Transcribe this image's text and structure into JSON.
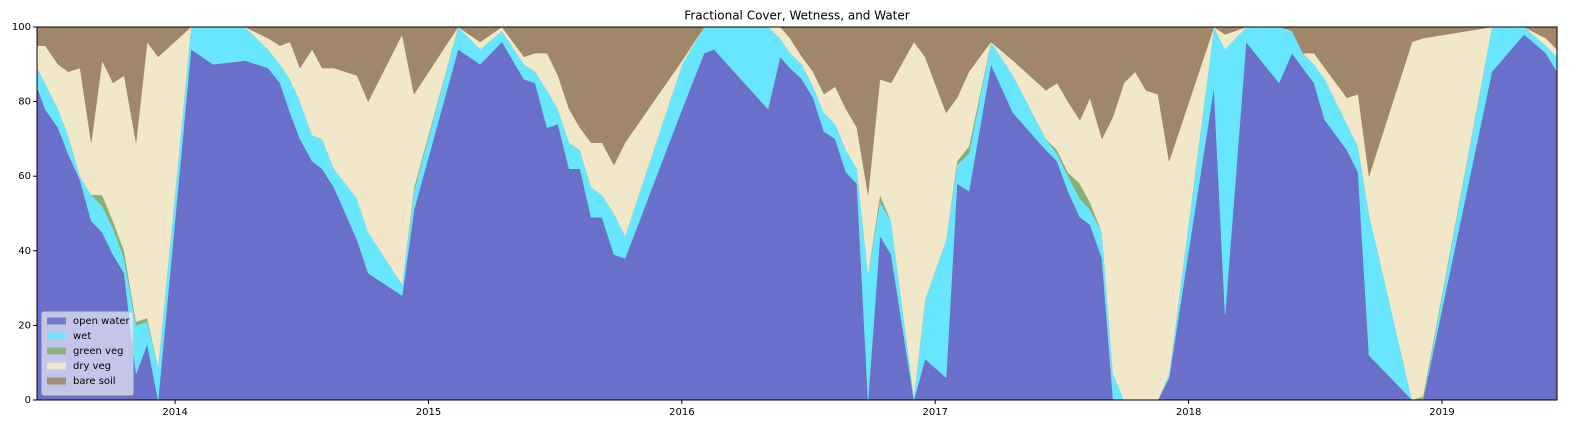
{
  "chart_data": {
    "type": "stacked_area",
    "title": "Fractional Cover, Wetness, and Water",
    "x": [
      2013.455,
      2013.487,
      2013.538,
      2013.578,
      2013.625,
      2013.669,
      2013.712,
      2013.755,
      2013.799,
      2013.846,
      2013.89,
      2013.933,
      2014.063,
      2014.15,
      2014.276,
      2014.367,
      2014.414,
      2014.454,
      2014.493,
      2014.541,
      2014.58,
      2014.627,
      2014.718,
      2014.762,
      2014.896,
      2014.943,
      2015.117,
      2015.204,
      2015.29,
      2015.377,
      2015.421,
      2015.468,
      2015.511,
      2015.555,
      2015.598,
      2015.642,
      2015.685,
      2015.732,
      2015.776,
      2016.001,
      2016.088,
      2016.127,
      2016.34,
      2016.388,
      2016.427,
      2016.474,
      2016.518,
      2016.561,
      2016.605,
      2016.648,
      2016.691,
      2016.735,
      2016.782,
      2016.826,
      2016.916,
      2016.96,
      2017.043,
      2017.086,
      2017.133,
      2017.22,
      2017.307,
      2017.437,
      2017.481,
      2017.524,
      2017.571,
      2017.611,
      2017.658,
      2017.702,
      2017.745,
      2017.789,
      2017.832,
      2017.879,
      2017.923,
      2018.1,
      2018.144,
      2018.227,
      2018.357,
      2018.408,
      2018.451,
      2018.495,
      2018.538,
      2018.625,
      2018.669,
      2018.712,
      2018.882,
      2018.925,
      2019.197,
      2019.324,
      2019.41,
      2019.454
    ],
    "series": [
      {
        "name": "open water",
        "color": "#6a70c9",
        "values": [
          84,
          78,
          73,
          66,
          59,
          48,
          45,
          39,
          34,
          7,
          15,
          0,
          94,
          90,
          91,
          89,
          85,
          77,
          70,
          64,
          62,
          57,
          43,
          34,
          28,
          51,
          94,
          90,
          96,
          86,
          85,
          73,
          74,
          62,
          62,
          49,
          49,
          39,
          38,
          78,
          93,
          94,
          78,
          92,
          89,
          86,
          81,
          72,
          70,
          61,
          58,
          0,
          44,
          39,
          0,
          11,
          6,
          58,
          56,
          90,
          77,
          67,
          64,
          56,
          49,
          47,
          38,
          0,
          0,
          0,
          0,
          0,
          6,
          84,
          23,
          96,
          85,
          93,
          89,
          85,
          75,
          67,
          61,
          12,
          0,
          0,
          88,
          98,
          93,
          88
        ]
      },
      {
        "name": "wet",
        "color": "#68e6fd",
        "values": [
          5,
          7,
          5,
          5,
          1,
          7,
          7,
          7,
          4,
          13,
          6,
          9,
          6,
          10,
          9,
          5,
          5,
          9,
          10,
          7,
          8,
          5,
          11,
          11,
          3,
          5,
          6,
          4,
          3,
          4,
          3,
          10,
          4,
          7,
          5,
          8,
          6,
          11,
          6,
          12,
          7,
          6,
          22,
          5,
          4,
          4,
          3,
          5,
          4,
          6,
          4,
          34,
          9,
          9,
          1,
          16,
          37,
          5,
          10,
          6,
          10,
          3,
          2,
          4,
          5,
          4,
          7,
          7,
          0,
          0,
          0,
          0,
          1,
          16,
          71,
          4,
          15,
          6,
          4,
          5,
          11,
          7,
          7,
          38,
          0,
          0,
          12,
          2,
          2,
          4
        ]
      },
      {
        "name": "green veg",
        "color": "#8aae76",
        "values": [
          0,
          0,
          0,
          0,
          0,
          0,
          3,
          2,
          2,
          1,
          1,
          0,
          0,
          0,
          0,
          0,
          0,
          0,
          0,
          0,
          0,
          0,
          0,
          0,
          0,
          1,
          0,
          0,
          0,
          0,
          0,
          0,
          0,
          0,
          0,
          0,
          0,
          0,
          0,
          0,
          0,
          0,
          0,
          0,
          0,
          0,
          0,
          0,
          0,
          0,
          0,
          0,
          2,
          0,
          0,
          0,
          0,
          1,
          2,
          0,
          0,
          0,
          1,
          1,
          4,
          2,
          0,
          0,
          0,
          0,
          0,
          0,
          0,
          0,
          0,
          0,
          0,
          0,
          0,
          0,
          0,
          0,
          0,
          0,
          0,
          1,
          0,
          0,
          0,
          0
        ]
      },
      {
        "name": "dry veg",
        "color": "#f1e7c9",
        "values": [
          6,
          10,
          12,
          17,
          29,
          14,
          36,
          37,
          47,
          48,
          74,
          83,
          0,
          0,
          0,
          3,
          5,
          10,
          9,
          23,
          19,
          27,
          33,
          35,
          67,
          25,
          0,
          2,
          1,
          2,
          5,
          10,
          9,
          9,
          6,
          12,
          14,
          13,
          25,
          1,
          0,
          0,
          0,
          3,
          4,
          2,
          4,
          5,
          10,
          11,
          11,
          21,
          31,
          37,
          95,
          65,
          34,
          17,
          20,
          0,
          4,
          13,
          18,
          19,
          17,
          28,
          25,
          69,
          85,
          88,
          83,
          82,
          57,
          0,
          4,
          0,
          0,
          0,
          0,
          3,
          3,
          7,
          14,
          10,
          96,
          96,
          0,
          0,
          2,
          2
        ]
      },
      {
        "name": "bare soil",
        "color": "#a1876a",
        "values": [
          5,
          5,
          10,
          12,
          11,
          31,
          9,
          15,
          13,
          31,
          4,
          8,
          0,
          0,
          0,
          3,
          5,
          4,
          11,
          6,
          11,
          11,
          13,
          20,
          2,
          18,
          0,
          4,
          0,
          8,
          7,
          7,
          13,
          22,
          27,
          31,
          31,
          37,
          31,
          9,
          0,
          0,
          0,
          0,
          3,
          8,
          12,
          18,
          16,
          22,
          27,
          45,
          14,
          15,
          4,
          8,
          23,
          19,
          12,
          4,
          9,
          17,
          15,
          20,
          25,
          19,
          30,
          24,
          15,
          12,
          17,
          18,
          36,
          0,
          2,
          0,
          0,
          1,
          7,
          7,
          11,
          19,
          18,
          40,
          4,
          3,
          0,
          0,
          3,
          6
        ]
      }
    ],
    "xlim": [
      2013.455,
      2019.454
    ],
    "xticks": [
      2014,
      2015,
      2016,
      2017,
      2018,
      2019
    ],
    "ylim": [
      0,
      100
    ],
    "yticks": [
      0,
      20,
      40,
      60,
      80,
      100
    ],
    "legend": "lower left"
  }
}
